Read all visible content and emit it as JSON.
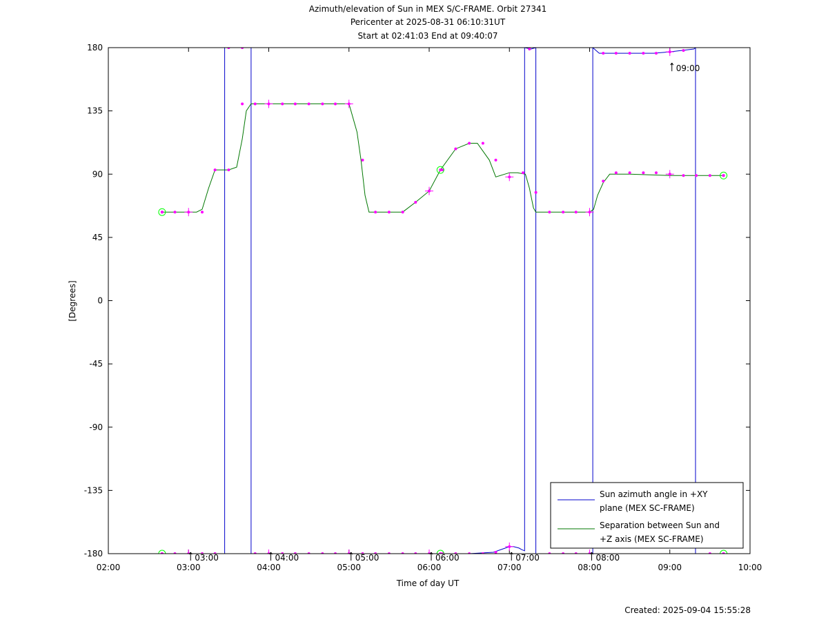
{
  "header": {
    "title_line1": "Azimuth/elevation of Sun in MEX S/C-FRAME.  Orbit 27341",
    "title_line2": "Pericenter at 2025-08-31 06:10:31UT",
    "title_line3": "Start at 02:41:03 End at 09:40:07"
  },
  "footer": {
    "created": "Created: 2025-09-04 15:55:28"
  },
  "colors": {
    "azimuth": "#0000cc",
    "separation": "#007700",
    "marker": "#ff00ff",
    "endpoint": "#00ff00"
  },
  "chart_data": {
    "type": "line",
    "xlabel": "Time of day UT",
    "ylabel": "[Degrees]",
    "xlim": [
      2.0,
      10.0
    ],
    "ylim": [
      -180,
      180
    ],
    "x_ticks": [
      {
        "v": 2,
        "label": "02:00"
      },
      {
        "v": 3,
        "label": "03:00"
      },
      {
        "v": 4,
        "label": "04:00"
      },
      {
        "v": 5,
        "label": "05:00"
      },
      {
        "v": 6,
        "label": "06:00"
      },
      {
        "v": 7,
        "label": "07:00"
      },
      {
        "v": 8,
        "label": "08:00"
      },
      {
        "v": 9,
        "label": "09:00"
      },
      {
        "v": 10,
        "label": "10:00"
      }
    ],
    "y_ticks": [
      {
        "v": 180,
        "label": "180"
      },
      {
        "v": 135,
        "label": "135"
      },
      {
        "v": 90,
        "label": "90"
      },
      {
        "v": 45,
        "label": "45"
      },
      {
        "v": 0,
        "label": "0"
      },
      {
        "v": -45,
        "label": "-45"
      },
      {
        "v": -90,
        "label": "-90"
      },
      {
        "v": -135,
        "label": "-135"
      },
      {
        "v": -180,
        "label": "-180"
      }
    ],
    "hour_marks": [
      {
        "x": 3.0,
        "y": -180,
        "label": "03:00"
      },
      {
        "x": 4.0,
        "y": -180,
        "label": "04:00"
      },
      {
        "x": 5.0,
        "y": -180,
        "label": "05:00"
      },
      {
        "x": 6.0,
        "y": -180,
        "label": "06:00"
      },
      {
        "x": 7.0,
        "y": -180,
        "label": "07:00"
      },
      {
        "x": 8.0,
        "y": -180,
        "label": "08:00"
      },
      {
        "x": 9.0,
        "y": 175,
        "label": "09:00"
      }
    ],
    "legend": {
      "placement": "bottom-right",
      "entries": [
        {
          "line1": "Sun azimuth angle in +XY",
          "line2": "plane (MEX SC-FRAME)",
          "color": "#0000cc"
        },
        {
          "line1": "Separation between Sun and",
          "line2": "+Z axis (MEX SC-FRAME)",
          "color": "#007700"
        }
      ]
    },
    "series": [
      {
        "key": "azimuth",
        "color": "#0000cc",
        "x": [
          2.67,
          3.0,
          3.2,
          3.45,
          3.45,
          3.6,
          3.78,
          3.78,
          4.0,
          4.5,
          5.0,
          5.5,
          6.0,
          6.5,
          6.8,
          6.95,
          7.0,
          7.05,
          7.12,
          7.15,
          7.19,
          7.19,
          7.27,
          7.33,
          7.33,
          7.6,
          8.0,
          8.04,
          8.04,
          8.12,
          8.4,
          8.8,
          9.0,
          9.3,
          9.32,
          9.32,
          9.67
        ],
        "y": [
          -180,
          -180,
          -180,
          -180,
          180,
          180,
          180,
          -180,
          -180,
          -180,
          -180,
          -180,
          -180,
          -180,
          -179,
          -176,
          -175,
          -175,
          -176,
          -177,
          -178,
          180,
          179,
          180,
          -180,
          -180,
          -180,
          -180,
          180,
          176,
          176,
          176,
          177,
          179,
          180,
          -180,
          -180
        ],
        "markers": [
          [
            2.67,
            -180
          ],
          [
            2.83,
            -180
          ],
          [
            3.0,
            -180
          ],
          [
            3.17,
            -180
          ],
          [
            3.33,
            -180
          ],
          [
            3.5,
            180
          ],
          [
            3.67,
            180
          ],
          [
            3.83,
            -180
          ],
          [
            4.0,
            -180
          ],
          [
            4.17,
            -180
          ],
          [
            4.33,
            -180
          ],
          [
            4.5,
            -180
          ],
          [
            4.67,
            -180
          ],
          [
            4.83,
            -180
          ],
          [
            5.0,
            -180
          ],
          [
            5.17,
            -180
          ],
          [
            5.33,
            -180
          ],
          [
            5.5,
            -180
          ],
          [
            5.67,
            -180
          ],
          [
            5.83,
            -180
          ],
          [
            6.0,
            -180
          ],
          [
            6.17,
            -180
          ],
          [
            6.33,
            -180
          ],
          [
            6.5,
            -180
          ],
          [
            6.67,
            -180
          ],
          [
            6.83,
            -179
          ],
          [
            7.0,
            -175
          ],
          [
            7.25,
            179
          ],
          [
            7.5,
            -180
          ],
          [
            7.67,
            -180
          ],
          [
            7.83,
            -180
          ],
          [
            8.0,
            -180
          ],
          [
            8.17,
            176
          ],
          [
            8.33,
            176
          ],
          [
            8.5,
            176
          ],
          [
            8.67,
            176
          ],
          [
            8.83,
            176
          ],
          [
            9.0,
            177
          ],
          [
            9.17,
            178
          ],
          [
            9.5,
            -180
          ],
          [
            9.67,
            -180
          ]
        ],
        "crosses": [
          3.0,
          4.0,
          5.0,
          6.0,
          7.0,
          8.0,
          9.0
        ],
        "endpoints": [
          [
            2.67,
            -180
          ],
          [
            6.14,
            -180
          ],
          [
            9.67,
            -180
          ]
        ]
      },
      {
        "key": "separation",
        "color": "#007700",
        "x": [
          2.67,
          2.83,
          3.0,
          3.1,
          3.17,
          3.25,
          3.33,
          3.42,
          3.5,
          3.6,
          3.67,
          3.72,
          3.78,
          4.0,
          4.5,
          5.0,
          5.1,
          5.15,
          5.2,
          5.25,
          5.33,
          5.5,
          5.67,
          5.83,
          6.0,
          6.14,
          6.33,
          6.5,
          6.6,
          6.75,
          6.83,
          7.0,
          7.1,
          7.2,
          7.25,
          7.3,
          7.33,
          7.5,
          8.0,
          8.05,
          8.1,
          8.17,
          8.25,
          8.5,
          9.0,
          9.33,
          9.67
        ],
        "y": [
          63,
          63,
          63,
          63,
          65,
          80,
          93,
          93,
          93,
          95,
          115,
          135,
          140,
          140,
          140,
          140,
          120,
          100,
          75,
          63,
          63,
          63,
          63,
          70,
          78,
          93,
          108,
          112,
          112,
          100,
          88,
          91,
          91,
          90,
          80,
          66,
          63,
          63,
          63,
          65,
          75,
          84,
          90,
          90,
          89,
          89,
          89
        ],
        "markers": [
          [
            2.67,
            63
          ],
          [
            2.83,
            63
          ],
          [
            3.0,
            63
          ],
          [
            3.17,
            63
          ],
          [
            3.33,
            93
          ],
          [
            3.5,
            93
          ],
          [
            3.67,
            140
          ],
          [
            3.83,
            140
          ],
          [
            4.0,
            140
          ],
          [
            4.17,
            140
          ],
          [
            4.33,
            140
          ],
          [
            4.5,
            140
          ],
          [
            4.67,
            140
          ],
          [
            4.83,
            140
          ],
          [
            5.0,
            140
          ],
          [
            5.17,
            100
          ],
          [
            5.33,
            63
          ],
          [
            5.5,
            63
          ],
          [
            5.67,
            63
          ],
          [
            5.83,
            70
          ],
          [
            6.0,
            78
          ],
          [
            6.17,
            93
          ],
          [
            6.33,
            108
          ],
          [
            6.5,
            112
          ],
          [
            6.67,
            112
          ],
          [
            6.83,
            100
          ],
          [
            7.0,
            88
          ],
          [
            7.17,
            91
          ],
          [
            7.33,
            77
          ],
          [
            7.5,
            63
          ],
          [
            7.67,
            63
          ],
          [
            7.83,
            63
          ],
          [
            8.0,
            63
          ],
          [
            8.17,
            85
          ],
          [
            8.33,
            91
          ],
          [
            8.5,
            91
          ],
          [
            8.67,
            91
          ],
          [
            8.83,
            91
          ],
          [
            9.0,
            90
          ],
          [
            9.17,
            89
          ],
          [
            9.33,
            89
          ],
          [
            9.5,
            89
          ],
          [
            9.67,
            89
          ]
        ],
        "crosses": [
          3.0,
          4.0,
          5.0,
          6.0,
          7.0,
          8.0,
          9.0
        ],
        "endpoints": [
          [
            2.67,
            63
          ],
          [
            6.14,
            93
          ],
          [
            9.67,
            89
          ]
        ]
      }
    ]
  }
}
